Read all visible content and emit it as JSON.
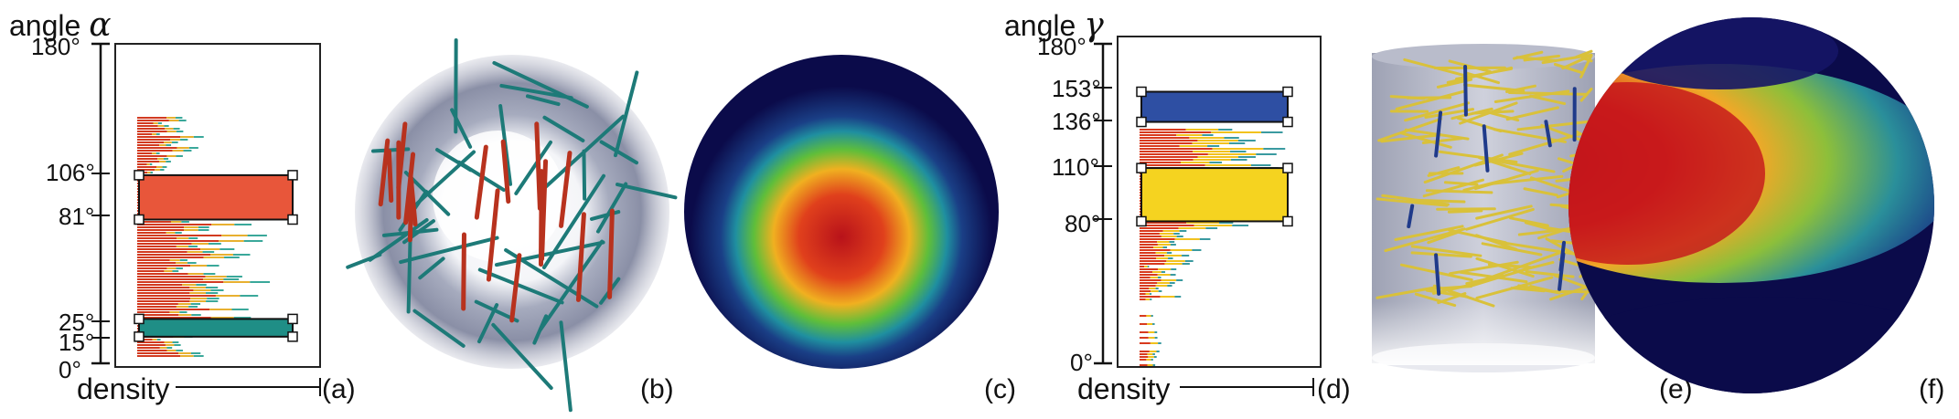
{
  "left": {
    "axis_title": "angle",
    "axis_symbol": "α",
    "ticks": [
      "180°",
      "106°",
      "81°",
      "25°",
      "15°",
      "0°"
    ],
    "x_title": "density",
    "panel_labels": [
      "(a)",
      "(b)",
      "(c)"
    ]
  },
  "right": {
    "axis_title": "angle",
    "axis_symbol": "γ",
    "ticks": [
      "180°",
      "153°",
      "136°",
      "110°",
      "80°",
      "0°"
    ],
    "x_title": "density",
    "panel_labels": [
      "(d)",
      "(e)",
      "(f)"
    ]
  },
  "selections": {
    "a": [
      {
        "from": 81,
        "to": 106,
        "color": "#e8563a"
      },
      {
        "from": 15,
        "to": 25,
        "color": "#1f8e86"
      }
    ],
    "d": [
      {
        "from": 136,
        "to": 153,
        "color": "#2e4fa3"
      },
      {
        "from": 80,
        "to": 110,
        "color": "#f5d320"
      }
    ]
  },
  "colors": {
    "alpha_fibers_red": "#b8321e",
    "alpha_fibers_teal": "#1d7a78",
    "gamma_fibers_yellow": "#d9c13a",
    "gamma_fibers_blue": "#1f3a8a",
    "heat_low": "#0b0b4a",
    "heat_high": "#c8181a"
  }
}
